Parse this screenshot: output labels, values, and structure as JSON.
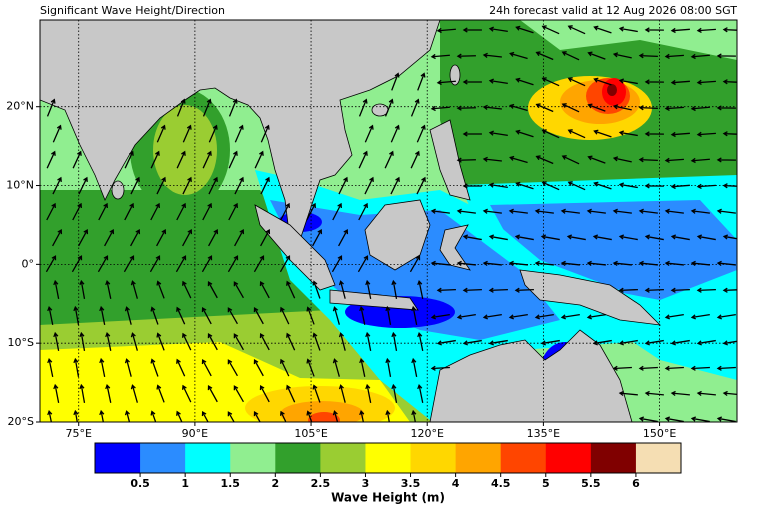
{
  "map": {
    "title": "Significant Wave Height/Direction",
    "subtitle": "24h forecast valid at 12 Aug 2026 08:00 SGT",
    "xlim": [
      70,
      160
    ],
    "ylim": [
      -20,
      31
    ],
    "xticks": [
      {
        "value": 75,
        "label": "75°E"
      },
      {
        "value": 90,
        "label": "90°E"
      },
      {
        "value": 105,
        "label": "105°E"
      },
      {
        "value": 120,
        "label": "120°E"
      },
      {
        "value": 135,
        "label": "135°E"
      },
      {
        "value": 150,
        "label": "150°E"
      }
    ],
    "yticks": [
      {
        "value": -20,
        "label": "20°S"
      },
      {
        "value": -10,
        "label": "10°S"
      },
      {
        "value": 0,
        "label": "0°"
      },
      {
        "value": 10,
        "label": "10°N"
      },
      {
        "value": 20,
        "label": "20°N"
      }
    ],
    "grid": true,
    "colorbar": {
      "label": "Wave Height (m)",
      "levels": [
        0.5,
        1,
        1.5,
        2,
        2.5,
        3,
        3.5,
        4,
        4.5,
        5,
        5.5,
        6
      ],
      "colors": [
        "#0000ff",
        "#2b8cff",
        "#00ffff",
        "#90ee90",
        "#32a02c",
        "#9acd32",
        "#ffff00",
        "#ffd700",
        "#ffa500",
        "#ff4500",
        "#ff0000",
        "#800000",
        "#f5deb3"
      ]
    }
  }
}
